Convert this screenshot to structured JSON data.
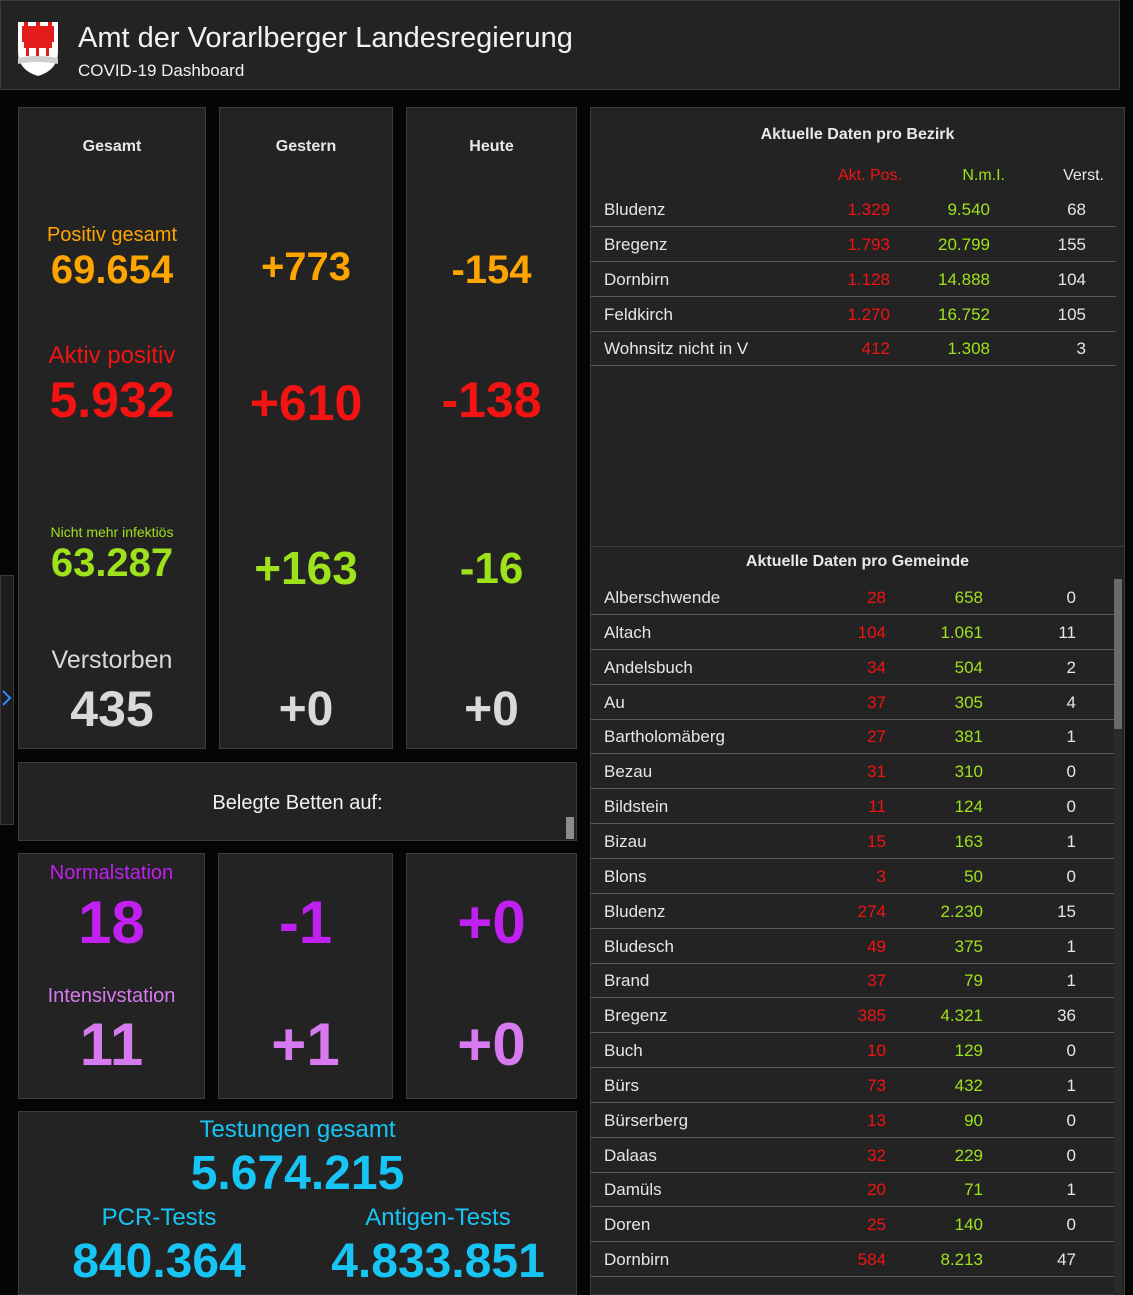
{
  "header": {
    "title": "Amt der Vorarlberger Landesregierung",
    "subtitle": "COVID-19 Dashboard"
  },
  "columns": {
    "total": "Gesamt",
    "yesterday": "Gestern",
    "today": "Heute"
  },
  "stats": {
    "positive": {
      "label": "Positiv gesamt",
      "total": "69.654",
      "yesterday": "+773",
      "today": "-154"
    },
    "active": {
      "label": "Aktiv positiv",
      "total": "5.932",
      "yesterday": "+610",
      "today": "-138"
    },
    "recovered": {
      "label": "Nicht mehr infektiös",
      "total": "63.287",
      "yesterday": "+163",
      "today": "-16"
    },
    "deaths": {
      "label": "Verstorben",
      "total": "435",
      "yesterday": "+0",
      "today": "+0"
    }
  },
  "beds": {
    "title": "Belegte Betten auf:",
    "normal": {
      "label": "Normalstation",
      "total": "18",
      "yesterday": "-1",
      "today": "+0"
    },
    "intensive": {
      "label": "Intensivstation",
      "total": "11",
      "yesterday": "+1",
      "today": "+0"
    }
  },
  "tests": {
    "label": "Testungen gesamt",
    "total": "5.674.215",
    "pcr_label": "PCR-Tests",
    "pcr": "840.364",
    "antigen_label": "Antigen-Tests",
    "antigen": "4.833.851"
  },
  "districts": {
    "title": "Aktuelle Daten pro Bezirk",
    "headers": {
      "akt": "Akt. Pos.",
      "nml": "N.m.I.",
      "vers": "Verst."
    },
    "rows": [
      {
        "name": "Bludenz",
        "akt": "1.329",
        "nml": "9.540",
        "vers": "68"
      },
      {
        "name": "Bregenz",
        "akt": "1.793",
        "nml": "20.799",
        "vers": "155"
      },
      {
        "name": "Dornbirn",
        "akt": "1.128",
        "nml": "14.888",
        "vers": "104"
      },
      {
        "name": "Feldkirch",
        "akt": "1.270",
        "nml": "16.752",
        "vers": "105"
      },
      {
        "name": "Wohnsitz nicht in V",
        "akt": "412",
        "nml": "1.308",
        "vers": "3"
      }
    ]
  },
  "municipalities": {
    "title": "Aktuelle Daten pro Gemeinde",
    "rows": [
      {
        "name": "Alberschwende",
        "akt": "28",
        "nml": "658",
        "vers": "0"
      },
      {
        "name": "Altach",
        "akt": "104",
        "nml": "1.061",
        "vers": "11"
      },
      {
        "name": "Andelsbuch",
        "akt": "34",
        "nml": "504",
        "vers": "2"
      },
      {
        "name": "Au",
        "akt": "37",
        "nml": "305",
        "vers": "4"
      },
      {
        "name": "Bartholomäberg",
        "akt": "27",
        "nml": "381",
        "vers": "1"
      },
      {
        "name": "Bezau",
        "akt": "31",
        "nml": "310",
        "vers": "0"
      },
      {
        "name": "Bildstein",
        "akt": "11",
        "nml": "124",
        "vers": "0"
      },
      {
        "name": "Bizau",
        "akt": "15",
        "nml": "163",
        "vers": "1"
      },
      {
        "name": "Blons",
        "akt": "3",
        "nml": "50",
        "vers": "0"
      },
      {
        "name": "Bludenz",
        "akt": "274",
        "nml": "2.230",
        "vers": "15"
      },
      {
        "name": "Bludesch",
        "akt": "49",
        "nml": "375",
        "vers": "1"
      },
      {
        "name": "Brand",
        "akt": "37",
        "nml": "79",
        "vers": "1"
      },
      {
        "name": "Bregenz",
        "akt": "385",
        "nml": "4.321",
        "vers": "36"
      },
      {
        "name": "Buch",
        "akt": "10",
        "nml": "129",
        "vers": "0"
      },
      {
        "name": "Bürs",
        "akt": "73",
        "nml": "432",
        "vers": "1"
      },
      {
        "name": "Bürserberg",
        "akt": "13",
        "nml": "90",
        "vers": "0"
      },
      {
        "name": "Dalaas",
        "akt": "32",
        "nml": "229",
        "vers": "0"
      },
      {
        "name": "Damüls",
        "akt": "20",
        "nml": "71",
        "vers": "1"
      },
      {
        "name": "Doren",
        "akt": "25",
        "nml": "140",
        "vers": "0"
      },
      {
        "name": "Dornbirn",
        "akt": "584",
        "nml": "8.213",
        "vers": "47"
      }
    ]
  },
  "colors": {
    "orange": "#ffa500",
    "red": "#f21313",
    "green": "#9ee21b",
    "purple": "#c020f0",
    "lilac": "#d77af0",
    "cyan": "#17c5f5"
  }
}
